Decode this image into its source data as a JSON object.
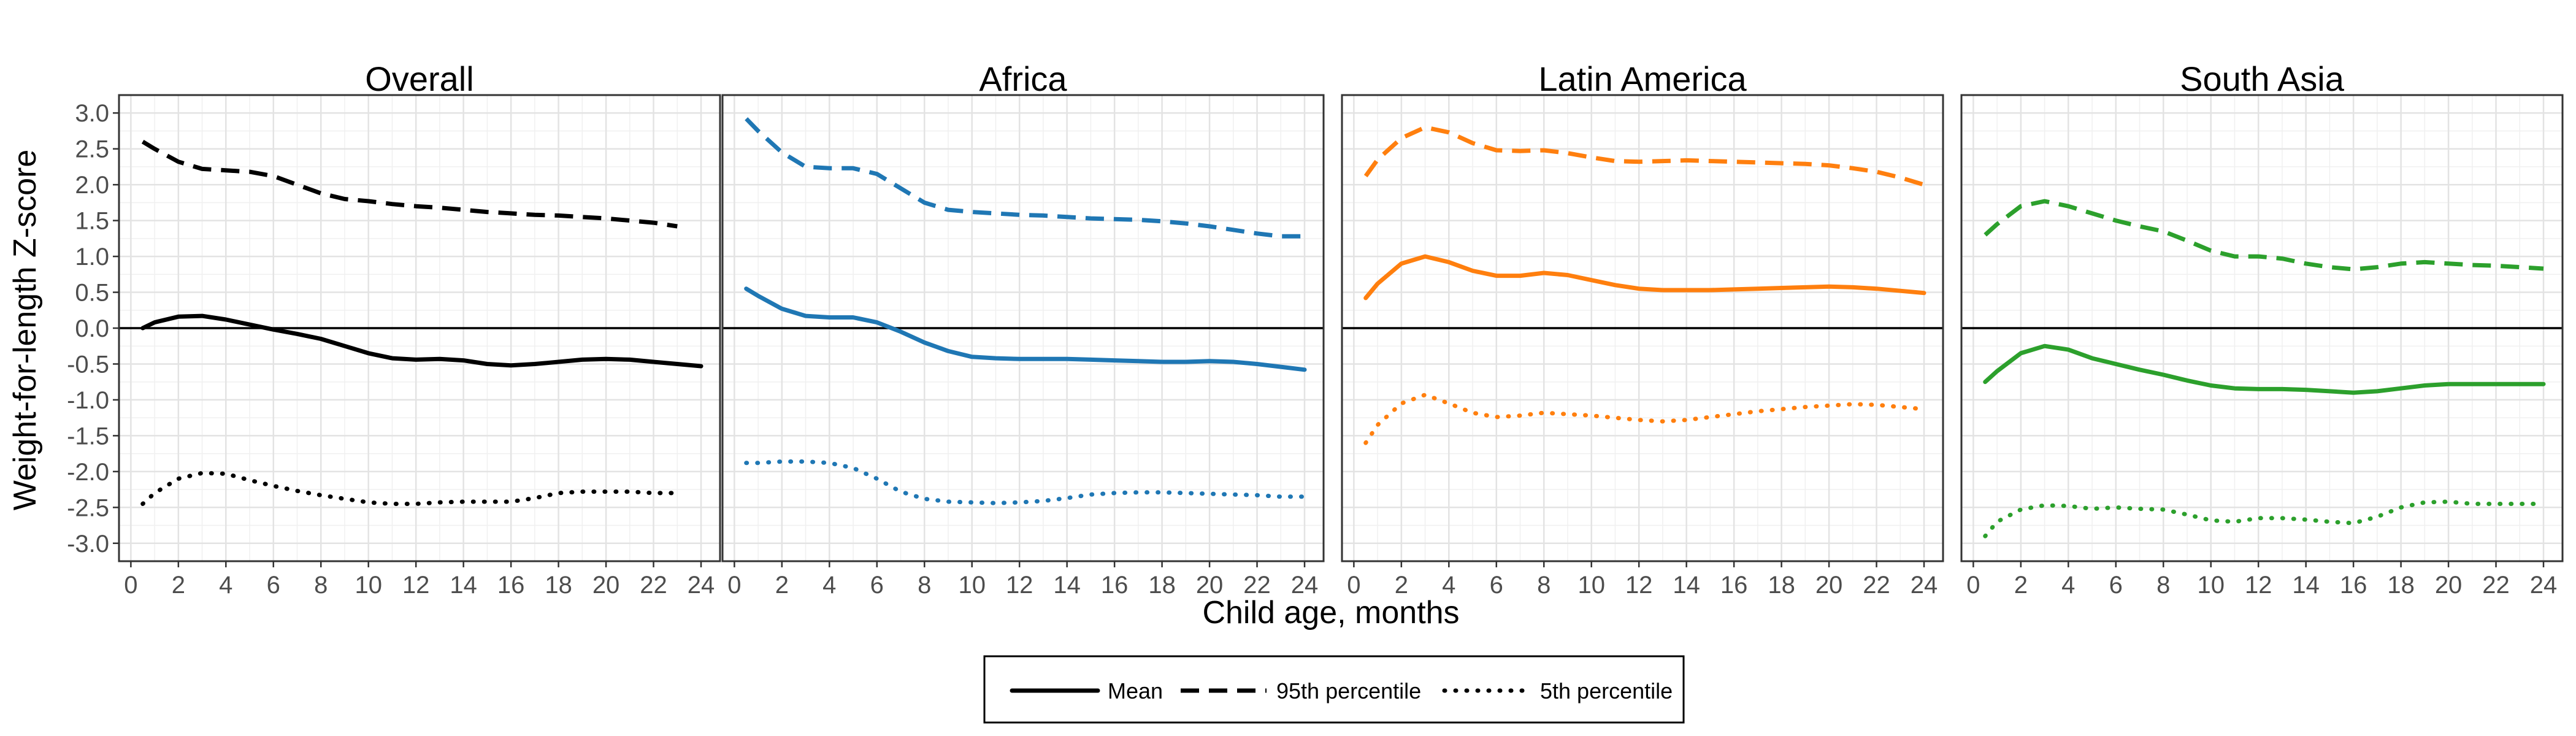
{
  "chart_data": {
    "type": "line",
    "xlabel": "Child age, months",
    "ylabel": "Weight-for-length Z-score",
    "xlim": [
      -0.5,
      24.8
    ],
    "ylim": [
      -3.25,
      3.25
    ],
    "x_ticks": [
      0,
      2,
      4,
      6,
      8,
      10,
      12,
      14,
      16,
      18,
      20,
      22,
      24
    ],
    "x_tick_labels": [
      "0",
      "2",
      "4",
      "6",
      "8",
      "10",
      "12",
      "14",
      "16",
      "18",
      "20",
      "22",
      "24"
    ],
    "y_ticks": [
      3.0,
      2.5,
      2.0,
      1.5,
      1.0,
      0.5,
      0.0,
      -0.5,
      -1.0,
      -1.5,
      -2.0,
      -2.5,
      -3.0
    ],
    "y_tick_labels": [
      "3.0",
      "2.5",
      "2.0",
      "1.5",
      "1.0",
      "0.5",
      "0.0",
      "-0.5",
      "-1.0",
      "-1.5",
      "-2.0",
      "-2.5",
      "-3.0"
    ],
    "grid": true,
    "reference_line_y": 0,
    "legend": {
      "position": "bottom",
      "entries": [
        {
          "label": "Mean",
          "style": "solid"
        },
        {
          "label": "95th percentile",
          "style": "dashed"
        },
        {
          "label": "5th percentile",
          "style": "dotted"
        }
      ]
    },
    "panels": [
      {
        "title": "Overall",
        "color": "#000000",
        "series": [
          {
            "style": "solid",
            "x": [
              0.5,
              1,
              2,
              3,
              4,
              5,
              6,
              7,
              8,
              9,
              10,
              11,
              12,
              13,
              14,
              15,
              16,
              17,
              18,
              19,
              20,
              21,
              22,
              23,
              24
            ],
            "y": [
              0.0,
              0.08,
              0.16,
              0.17,
              0.12,
              0.05,
              -0.02,
              -0.08,
              -0.15,
              -0.25,
              -0.35,
              -0.42,
              -0.44,
              -0.43,
              -0.45,
              -0.5,
              -0.52,
              -0.5,
              -0.47,
              -0.44,
              -0.43,
              -0.44,
              -0.47,
              -0.5,
              -0.53
            ]
          },
          {
            "style": "dashed",
            "x": [
              0.5,
              1,
              2,
              3,
              4,
              5,
              6,
              7,
              8,
              9,
              10,
              11,
              12,
              13,
              14,
              15,
              16,
              17,
              18,
              19,
              20,
              21,
              22,
              23
            ],
            "y": [
              2.6,
              2.5,
              2.32,
              2.22,
              2.2,
              2.18,
              2.12,
              2.0,
              1.88,
              1.8,
              1.77,
              1.73,
              1.7,
              1.68,
              1.65,
              1.62,
              1.6,
              1.58,
              1.57,
              1.55,
              1.53,
              1.5,
              1.47,
              1.42
            ]
          },
          {
            "style": "dotted",
            "x": [
              0.5,
              1,
              2,
              3,
              4,
              5,
              6,
              7,
              8,
              9,
              10,
              11,
              12,
              13,
              14,
              15,
              16,
              17,
              18,
              19,
              20,
              21,
              22,
              23
            ],
            "y": [
              -2.45,
              -2.3,
              -2.1,
              -2.02,
              -2.03,
              -2.12,
              -2.2,
              -2.27,
              -2.33,
              -2.38,
              -2.43,
              -2.45,
              -2.45,
              -2.43,
              -2.42,
              -2.42,
              -2.42,
              -2.37,
              -2.3,
              -2.28,
              -2.28,
              -2.28,
              -2.3,
              -2.3
            ]
          }
        ]
      },
      {
        "title": "Africa",
        "color": "#1f77b4",
        "series": [
          {
            "style": "solid",
            "x": [
              0.5,
              1,
              2,
              3,
              4,
              5,
              6,
              7,
              8,
              9,
              10,
              11,
              12,
              13,
              14,
              15,
              16,
              17,
              18,
              19,
              20,
              21,
              22,
              23,
              24
            ],
            "y": [
              0.55,
              0.45,
              0.27,
              0.17,
              0.15,
              0.15,
              0.08,
              -0.05,
              -0.2,
              -0.32,
              -0.4,
              -0.42,
              -0.43,
              -0.43,
              -0.43,
              -0.44,
              -0.45,
              -0.46,
              -0.47,
              -0.47,
              -0.46,
              -0.47,
              -0.5,
              -0.54,
              -0.58
            ]
          },
          {
            "style": "dashed",
            "x": [
              0.5,
              1,
              2,
              3,
              4,
              5,
              6,
              7,
              8,
              9,
              10,
              11,
              12,
              13,
              14,
              15,
              16,
              17,
              18,
              19,
              20,
              21,
              22,
              23,
              24
            ],
            "y": [
              2.92,
              2.75,
              2.45,
              2.25,
              2.23,
              2.23,
              2.15,
              1.95,
              1.75,
              1.65,
              1.62,
              1.6,
              1.58,
              1.57,
              1.55,
              1.53,
              1.52,
              1.51,
              1.49,
              1.46,
              1.42,
              1.37,
              1.32,
              1.28,
              1.28
            ]
          },
          {
            "style": "dotted",
            "x": [
              0.5,
              1,
              2,
              3,
              4,
              5,
              6,
              7,
              8,
              9,
              10,
              11,
              12,
              13,
              14,
              15,
              16,
              17,
              18,
              19,
              20,
              21,
              22,
              23,
              24
            ],
            "y": [
              -1.88,
              -1.88,
              -1.86,
              -1.86,
              -1.88,
              -1.95,
              -2.1,
              -2.28,
              -2.38,
              -2.42,
              -2.43,
              -2.44,
              -2.43,
              -2.41,
              -2.37,
              -2.32,
              -2.3,
              -2.29,
              -2.29,
              -2.3,
              -2.31,
              -2.32,
              -2.33,
              -2.35,
              -2.35
            ]
          }
        ]
      },
      {
        "title": "Latin America",
        "color": "#ff7f0e",
        "series": [
          {
            "style": "solid",
            "x": [
              0.5,
              1,
              2,
              3,
              4,
              5,
              6,
              7,
              8,
              9,
              10,
              11,
              12,
              13,
              14,
              15,
              16,
              17,
              18,
              19,
              20,
              21,
              22,
              23,
              24
            ],
            "y": [
              0.42,
              0.62,
              0.9,
              1.0,
              0.92,
              0.8,
              0.73,
              0.73,
              0.77,
              0.74,
              0.67,
              0.6,
              0.55,
              0.53,
              0.53,
              0.53,
              0.54,
              0.55,
              0.56,
              0.57,
              0.58,
              0.57,
              0.55,
              0.52,
              0.49
            ]
          },
          {
            "style": "dashed",
            "x": [
              0.5,
              1,
              2,
              3,
              4,
              5,
              6,
              7,
              8,
              9,
              10,
              11,
              12,
              13,
              14,
              15,
              16,
              17,
              18,
              19,
              20,
              21,
              22,
              23,
              24
            ],
            "y": [
              2.12,
              2.35,
              2.65,
              2.8,
              2.73,
              2.58,
              2.48,
              2.47,
              2.48,
              2.44,
              2.38,
              2.33,
              2.32,
              2.33,
              2.34,
              2.33,
              2.32,
              2.31,
              2.3,
              2.29,
              2.27,
              2.23,
              2.18,
              2.1,
              2.0
            ]
          },
          {
            "style": "dotted",
            "x": [
              0.5,
              1,
              2,
              3,
              4,
              5,
              6,
              7,
              8,
              9,
              10,
              11,
              12,
              13,
              14,
              15,
              16,
              17,
              18,
              19,
              20,
              21,
              22,
              23,
              24
            ],
            "y": [
              -1.6,
              -1.35,
              -1.05,
              -0.93,
              -1.05,
              -1.18,
              -1.24,
              -1.22,
              -1.18,
              -1.2,
              -1.22,
              -1.25,
              -1.28,
              -1.3,
              -1.28,
              -1.24,
              -1.2,
              -1.16,
              -1.13,
              -1.1,
              -1.08,
              -1.06,
              -1.07,
              -1.1,
              -1.13
            ]
          }
        ]
      },
      {
        "title": "South Asia",
        "color": "#2ca02c",
        "series": [
          {
            "style": "solid",
            "x": [
              0.5,
              1,
              2,
              3,
              4,
              5,
              6,
              7,
              8,
              9,
              10,
              11,
              12,
              13,
              14,
              15,
              16,
              17,
              18,
              19,
              20,
              21,
              22,
              23,
              24
            ],
            "y": [
              -0.75,
              -0.6,
              -0.35,
              -0.25,
              -0.3,
              -0.42,
              -0.5,
              -0.58,
              -0.65,
              -0.73,
              -0.8,
              -0.84,
              -0.85,
              -0.85,
              -0.86,
              -0.88,
              -0.9,
              -0.88,
              -0.84,
              -0.8,
              -0.78,
              -0.78,
              -0.78,
              -0.78,
              -0.78
            ]
          },
          {
            "style": "dashed",
            "x": [
              0.5,
              1,
              2,
              3,
              4,
              5,
              6,
              7,
              8,
              9,
              10,
              11,
              12,
              13,
              14,
              15,
              16,
              17,
              18,
              19,
              20,
              21,
              22,
              23,
              24
            ],
            "y": [
              1.3,
              1.45,
              1.7,
              1.77,
              1.7,
              1.6,
              1.5,
              1.42,
              1.35,
              1.22,
              1.08,
              1.0,
              1.0,
              0.97,
              0.9,
              0.85,
              0.82,
              0.85,
              0.9,
              0.92,
              0.9,
              0.88,
              0.87,
              0.85,
              0.83
            ]
          },
          {
            "style": "dotted",
            "x": [
              0.5,
              1,
              2,
              3,
              4,
              5,
              6,
              7,
              8,
              9,
              10,
              11,
              12,
              13,
              14,
              15,
              16,
              17,
              18,
              19,
              20,
              21,
              22,
              23,
              24
            ],
            "y": [
              -2.9,
              -2.7,
              -2.53,
              -2.47,
              -2.48,
              -2.52,
              -2.5,
              -2.52,
              -2.53,
              -2.6,
              -2.68,
              -2.7,
              -2.65,
              -2.65,
              -2.67,
              -2.7,
              -2.72,
              -2.63,
              -2.5,
              -2.43,
              -2.42,
              -2.45,
              -2.45,
              -2.45,
              -2.45
            ]
          }
        ]
      }
    ]
  }
}
